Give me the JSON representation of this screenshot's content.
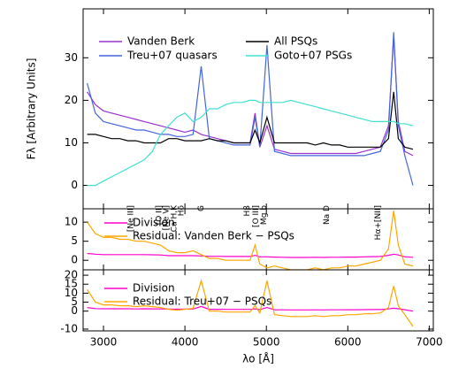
{
  "chart_data": [
    {
      "type": "line",
      "ylabel": "Fλ [Arbitrary Units]",
      "x": [
        2800,
        2900,
        3000,
        3100,
        3200,
        3300,
        3400,
        3500,
        3600,
        3700,
        3800,
        3900,
        4000,
        4100,
        4200,
        4300,
        4400,
        4500,
        4600,
        4700,
        4800,
        4861,
        4920,
        5007,
        5100,
        5200,
        5300,
        5400,
        5500,
        5600,
        5700,
        5800,
        5900,
        6000,
        6100,
        6200,
        6300,
        6400,
        6500,
        6563,
        6620,
        6700,
        6800
      ],
      "xlim": [
        2750,
        7050
      ],
      "ylim": [
        -5.5,
        41.5
      ],
      "yticks": [
        0,
        10,
        20,
        30
      ],
      "series": [
        {
          "name": "Vanden Berk",
          "color": "#9933cc",
          "values": [
            22,
            19,
            17.5,
            17,
            16.5,
            16,
            15.5,
            15,
            14.5,
            14,
            13.5,
            13,
            12.5,
            13,
            12,
            11.5,
            11,
            10.5,
            10,
            10,
            10,
            17,
            9,
            14,
            8.5,
            8,
            7.5,
            7.5,
            7.5,
            7.5,
            7.5,
            7.5,
            7.5,
            7.5,
            7.5,
            8,
            8.5,
            9,
            14,
            35,
            15,
            8,
            7
          ]
        },
        {
          "name": "Treu+07 quasars",
          "color": "#4466dd",
          "values": [
            24,
            17,
            15,
            14.5,
            14,
            13.5,
            13,
            13,
            12.5,
            12,
            12,
            11.5,
            11.5,
            12,
            28,
            11,
            10.5,
            10,
            9.5,
            9.5,
            9.5,
            16,
            9,
            33,
            8,
            7.5,
            7,
            7,
            7,
            7,
            7,
            7,
            7,
            7,
            7,
            7,
            7.5,
            8,
            13,
            36,
            14,
            7,
            0
          ]
        },
        {
          "name": "All PSQs",
          "color": "#000000",
          "values": [
            12,
            12,
            11.5,
            11,
            11,
            10.5,
            10.5,
            10,
            10,
            10,
            11,
            11,
            10.5,
            10.5,
            10.5,
            11,
            10.5,
            10.5,
            10,
            10,
            10,
            13,
            10,
            16,
            10,
            10,
            10,
            10,
            10,
            9.5,
            10,
            9.5,
            9.5,
            9,
            9,
            9,
            9,
            9,
            11,
            22,
            11,
            9,
            8.5
          ]
        },
        {
          "name": "Goto+07 PSGs",
          "color": "#40e0d0",
          "values": [
            0,
            0,
            1,
            2,
            3,
            4,
            5,
            6,
            8,
            12,
            14,
            16,
            17,
            15,
            16,
            18,
            18,
            19,
            19.5,
            19.5,
            20,
            20,
            19.5,
            19.5,
            19.5,
            19.5,
            20,
            19.5,
            19,
            18.5,
            18,
            17.5,
            17,
            16.5,
            16,
            15.5,
            15,
            15,
            15,
            15,
            14.5,
            14.5,
            14
          ]
        }
      ],
      "annotations": [
        {
          "text": "[Ne III]",
          "x": 3336
        },
        {
          "text": "[O II]",
          "x": 3683
        },
        {
          "text": "[Ne V]",
          "x": 3770
        },
        {
          "text": "Ca H,K",
          "x": 3867
        },
        {
          "text": "Hδ",
          "x": 3953
        },
        {
          "text": "G",
          "x": 4200
        },
        {
          "text": "Hβ",
          "x": 4766
        },
        {
          "text": "[O III]",
          "x": 4874
        },
        {
          "text": "Mg b",
          "x": 4972
        },
        {
          "text": "Na D",
          "x": 5740
        },
        {
          "text": "Hα+[NII]",
          "x": 6370
        }
      ]
    },
    {
      "type": "line",
      "x": [
        2800,
        2900,
        3000,
        3100,
        3200,
        3300,
        3400,
        3500,
        3600,
        3700,
        3800,
        3900,
        4000,
        4100,
        4200,
        4300,
        4400,
        4500,
        4600,
        4700,
        4800,
        4861,
        4920,
        5007,
        5100,
        5200,
        5300,
        5400,
        5500,
        5600,
        5700,
        5800,
        5900,
        6000,
        6100,
        6200,
        6300,
        6400,
        6500,
        6563,
        6620,
        6700,
        6800
      ],
      "xlim": [
        2750,
        7050
      ],
      "ylim": [
        -2.5,
        13.5
      ],
      "yticks": [
        0,
        5,
        10
      ],
      "series": [
        {
          "name": "Division",
          "color": "#ff00cc",
          "values": [
            1.8,
            1.6,
            1.5,
            1.5,
            1.5,
            1.5,
            1.5,
            1.5,
            1.45,
            1.4,
            1.2,
            1.2,
            1.2,
            1.2,
            1.15,
            1.05,
            1.05,
            1,
            1,
            1,
            1,
            1.3,
            0.9,
            0.9,
            0.85,
            0.8,
            0.75,
            0.75,
            0.75,
            0.8,
            0.75,
            0.8,
            0.8,
            0.85,
            0.85,
            0.9,
            0.95,
            1,
            1.3,
            1.6,
            1.4,
            0.9,
            0.8
          ]
        },
        {
          "name": "Residual: Vanden Berk − PSQs",
          "color": "#ffa500",
          "values": [
            10,
            7,
            6,
            6,
            5.5,
            5.5,
            5,
            5,
            4.5,
            4,
            2.5,
            2,
            2,
            2.5,
            1.5,
            0.5,
            0.5,
            0,
            0,
            0,
            0,
            4,
            -1,
            -2,
            -1.5,
            -2,
            -2.5,
            -2.5,
            -2.5,
            -2,
            -2.5,
            -2,
            -2,
            -1.5,
            -1.5,
            -1,
            -0.5,
            0,
            3,
            13,
            4,
            -1,
            -1.5
          ]
        }
      ]
    },
    {
      "type": "line",
      "xlabel": "λo [Å]",
      "x": [
        2800,
        2900,
        3000,
        3100,
        3200,
        3300,
        3400,
        3500,
        3600,
        3700,
        3800,
        3900,
        4000,
        4100,
        4200,
        4300,
        4400,
        4500,
        4600,
        4700,
        4800,
        4861,
        4920,
        5007,
        5100,
        5200,
        5300,
        5400,
        5500,
        5600,
        5700,
        5800,
        5900,
        6000,
        6100,
        6200,
        6300,
        6400,
        6500,
        6563,
        6620,
        6700,
        6800
      ],
      "xlim": [
        2750,
        7050
      ],
      "xticks": [
        3000,
        4000,
        5000,
        6000,
        7000
      ],
      "ylim": [
        -11,
        23
      ],
      "yticks": [
        -10,
        0,
        5,
        10,
        15,
        20
      ],
      "series": [
        {
          "name": "Division",
          "color": "#ff00cc",
          "values": [
            2,
            1.4,
            1.3,
            1.3,
            1.3,
            1.3,
            1.2,
            1.3,
            1.25,
            1.2,
            1.1,
            1.05,
            1.1,
            1.15,
            2.6,
            1,
            1,
            0.95,
            0.95,
            0.95,
            0.95,
            1.2,
            0.9,
            2,
            0.8,
            0.75,
            0.7,
            0.7,
            0.7,
            0.75,
            0.7,
            0.75,
            0.75,
            0.8,
            0.8,
            0.85,
            0.9,
            0.9,
            1.2,
            1.6,
            1.3,
            0.8,
            0
          ]
        },
        {
          "name": "Residual: Treu+07 − PSQs",
          "color": "#ffa500",
          "values": [
            12,
            5,
            3.5,
            3.5,
            3,
            3,
            2.5,
            3,
            2.5,
            2,
            1,
            0.5,
            1,
            1.5,
            17,
            0,
            0,
            -0.5,
            -0.5,
            -0.5,
            -0.5,
            3,
            -1,
            17,
            -2,
            -2.5,
            -3,
            -3,
            -3,
            -2.5,
            -3,
            -2.5,
            -2.5,
            -2,
            -2,
            -1.5,
            -1.5,
            -1,
            2,
            14,
            3,
            -2,
            -8.5
          ]
        }
      ]
    }
  ]
}
